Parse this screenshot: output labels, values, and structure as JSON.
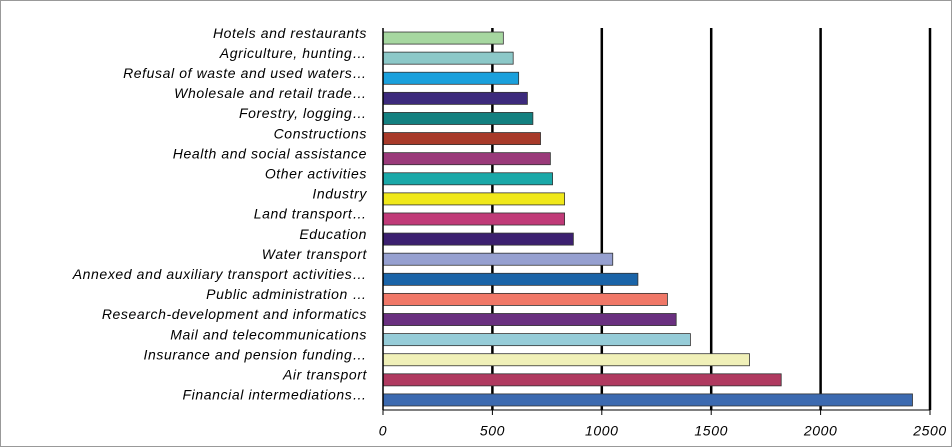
{
  "chart_data": {
    "type": "hbar",
    "categories": [
      "Hotels and restaurants",
      "Agriculture, hunting…",
      "Refusal of waste and used waters…",
      "Wholesale and retail trade…",
      "Forestry, logging…",
      "Constructions",
      "Health and social assistance",
      "Other activities",
      "Industry",
      "Land transport…",
      "Education",
      "Water transport",
      "Annexed and auxiliary transport activities…",
      "Public administration …",
      "Research-development and informatics",
      "Mail and telecommunications",
      "Insurance and pension funding…",
      "Air transport",
      "Financial intermediations…"
    ],
    "values": [
      550,
      595,
      620,
      660,
      685,
      720,
      765,
      775,
      830,
      830,
      870,
      1050,
      1165,
      1300,
      1340,
      1405,
      1675,
      1820,
      2420
    ],
    "colors": [
      "#a6d7a0",
      "#8cc8c8",
      "#1aa0dc",
      "#3c2a7c",
      "#138080",
      "#a83a2a",
      "#9a3a7a",
      "#1aa8a8",
      "#f0e81a",
      "#c03a78",
      "#3c2070",
      "#96a0d0",
      "#1a64a8",
      "#f07868",
      "#6a3080",
      "#96ccd8",
      "#f0f0b8",
      "#b03a60",
      "#3c6ab0"
    ],
    "xlim": [
      0,
      2500
    ],
    "xticks": [
      0,
      500,
      1000,
      1500,
      2000,
      2500
    ],
    "grid": true
  }
}
